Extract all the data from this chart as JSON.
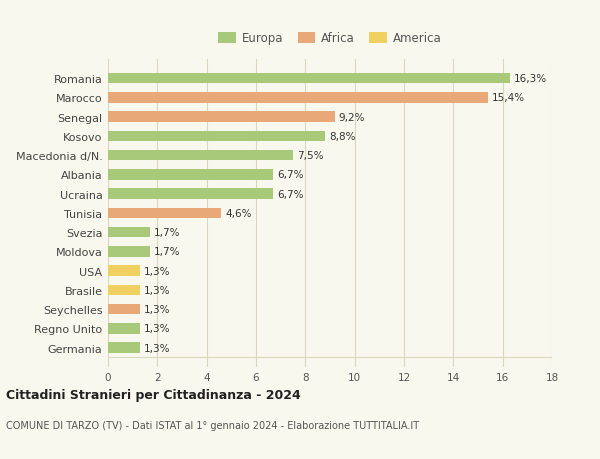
{
  "categories": [
    "Romania",
    "Marocco",
    "Senegal",
    "Kosovo",
    "Macedonia d/N.",
    "Albania",
    "Ucraina",
    "Tunisia",
    "Svezia",
    "Moldova",
    "USA",
    "Brasile",
    "Seychelles",
    "Regno Unito",
    "Germania"
  ],
  "values": [
    16.3,
    15.4,
    9.2,
    8.8,
    7.5,
    6.7,
    6.7,
    4.6,
    1.7,
    1.7,
    1.3,
    1.3,
    1.3,
    1.3,
    1.3
  ],
  "labels": [
    "16,3%",
    "15,4%",
    "9,2%",
    "8,8%",
    "7,5%",
    "6,7%",
    "6,7%",
    "4,6%",
    "1,7%",
    "1,7%",
    "1,3%",
    "1,3%",
    "1,3%",
    "1,3%",
    "1,3%"
  ],
  "continents": [
    "Europa",
    "Africa",
    "Africa",
    "Europa",
    "Europa",
    "Europa",
    "Europa",
    "Africa",
    "Europa",
    "Europa",
    "America",
    "America",
    "Africa",
    "Europa",
    "Europa"
  ],
  "colors": {
    "Europa": "#a8c87a",
    "Africa": "#e8a878",
    "America": "#f0d060"
  },
  "title": "Cittadini Stranieri per Cittadinanza - 2024",
  "subtitle": "COMUNE DI TARZO (TV) - Dati ISTAT al 1° gennaio 2024 - Elaborazione TUTTITALIA.IT",
  "xlim": [
    0,
    18
  ],
  "xticks": [
    0,
    2,
    4,
    6,
    8,
    10,
    12,
    14,
    16,
    18
  ],
  "background_color": "#f8f8ee",
  "grid_color": "#d8d8c0",
  "bar_height": 0.55
}
